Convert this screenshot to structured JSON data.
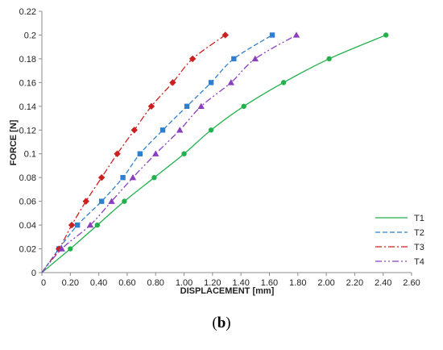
{
  "caption": {
    "open": "(",
    "letter": "b",
    "close": ")"
  },
  "chart_data": {
    "type": "scatter",
    "xlabel": "DISPLACEMENT [mm]",
    "ylabel": "FORCE [N]",
    "xlim": [
      0,
      2.6
    ],
    "ylim": [
      0,
      0.22
    ],
    "xticks": [
      "0",
      "0.20",
      "0.40",
      "0.60",
      "0.80",
      "1.00",
      "1.20",
      "1.40",
      "1.60",
      "1.80",
      "2.00",
      "2.20",
      "2.40",
      "2.60"
    ],
    "yticks": [
      "0",
      "0.02",
      "0.04",
      "0.06",
      "0.08",
      "0.1",
      "0.12",
      "0.14",
      "0.16",
      "0.18",
      "0.2",
      "0.22"
    ],
    "grid": false,
    "legend_position": "bottom-right",
    "series": [
      {
        "name": "T1",
        "color": "#22b14c",
        "line_style": "solid",
        "marker": "circle",
        "x": [
          0,
          0.2,
          0.39,
          0.58,
          0.79,
          1.0,
          1.19,
          1.42,
          1.7,
          2.02,
          2.42
        ],
        "y": [
          0,
          0.02,
          0.04,
          0.06,
          0.08,
          0.1,
          0.12,
          0.14,
          0.16,
          0.18,
          0.2
        ]
      },
      {
        "name": "T2",
        "color": "#2f7fd0",
        "line_style": "dashed",
        "marker": "square",
        "x": [
          0,
          0.12,
          0.25,
          0.42,
          0.57,
          0.69,
          0.85,
          1.02,
          1.19,
          1.35,
          1.62
        ],
        "y": [
          0,
          0.02,
          0.04,
          0.06,
          0.08,
          0.1,
          0.12,
          0.14,
          0.16,
          0.18,
          0.2
        ]
      },
      {
        "name": "T3",
        "color": "#cc1f1f",
        "line_style": "dash-dot",
        "marker": "diamond",
        "x": [
          0,
          0.12,
          0.21,
          0.31,
          0.42,
          0.53,
          0.65,
          0.77,
          0.92,
          1.06,
          1.29
        ],
        "y": [
          0,
          0.02,
          0.04,
          0.06,
          0.08,
          0.1,
          0.12,
          0.14,
          0.16,
          0.18,
          0.2
        ]
      },
      {
        "name": "T4",
        "color": "#8a3fbf",
        "line_style": "dash-dot-dot",
        "marker": "triangle",
        "x": [
          0,
          0.14,
          0.34,
          0.49,
          0.64,
          0.8,
          0.97,
          1.12,
          1.33,
          1.5,
          1.79
        ],
        "y": [
          0,
          0.02,
          0.04,
          0.06,
          0.08,
          0.1,
          0.12,
          0.14,
          0.16,
          0.18,
          0.2
        ]
      }
    ]
  }
}
